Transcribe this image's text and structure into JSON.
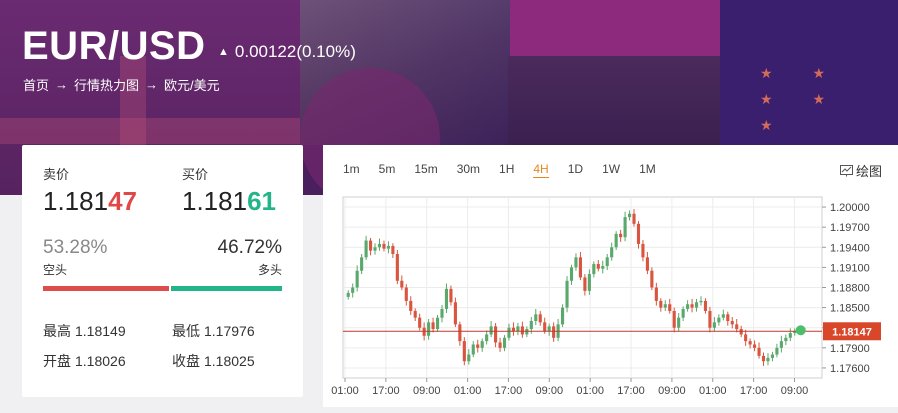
{
  "header": {
    "pair": "EUR/USD",
    "change_arrow": "▲",
    "change": "0.00122(0.10%)",
    "breadcrumb": [
      "首页",
      "行情热力图",
      "欧元/美元"
    ],
    "breadcrumb_sep": "→"
  },
  "quote": {
    "sell_label": "卖价",
    "buy_label": "买价",
    "sell_price_main": "1.181",
    "sell_price_hl": "47",
    "buy_price_main": "1.181",
    "buy_price_hl": "61",
    "short_pct": "53.28%",
    "long_pct": "46.72%",
    "short_label": "空头",
    "long_label": "多头",
    "short_fraction": 0.5328,
    "long_fraction": 0.4672,
    "high_label": "最高",
    "high": "1.18149",
    "low_label": "最低",
    "low": "1.17976",
    "open_label": "开盘",
    "open": "1.18026",
    "close_label": "收盘",
    "close": "1.18025"
  },
  "chart_toolbar": {
    "timeframes": [
      "1m",
      "5m",
      "15m",
      "30m",
      "1H",
      "4H",
      "1D",
      "1W",
      "1M"
    ],
    "active_timeframe": "4H",
    "draw_label": "绘图"
  },
  "colors": {
    "up": "#22b58a",
    "down": "#e04848",
    "up_candle": "#5aa86c",
    "down_candle": "#d9553f",
    "price_line": "#c0392b",
    "accent": "#e08a1e"
  },
  "chart_data": {
    "type": "candlestick",
    "x_tick_labels": [
      "01:00",
      "17:00",
      "09:00",
      "01:00",
      "17:00",
      "09:00",
      "01:00",
      "17:00",
      "09:00",
      "01:00",
      "17:00",
      "09:00"
    ],
    "y_tick_labels": [
      "1.20000",
      "1.19700",
      "1.19400",
      "1.19100",
      "1.18800",
      "1.18500",
      "1.18200",
      "1.17900",
      "1.17600"
    ],
    "ylim": [
      1.1745,
      1.2015
    ],
    "current_price": 1.18147,
    "current_price_label": "1.18147",
    "closes": [
      1.1872,
      1.188,
      1.1905,
      1.1925,
      1.195,
      1.1935,
      1.194,
      1.1945,
      1.1938,
      1.1942,
      1.193,
      1.189,
      1.188,
      1.186,
      1.1845,
      1.1835,
      1.182,
      1.1808,
      1.1828,
      1.1818,
      1.1835,
      1.1848,
      1.1878,
      1.1858,
      1.1825,
      1.18,
      1.177,
      1.178,
      1.1795,
      1.179,
      1.18,
      1.181,
      1.1822,
      1.1798,
      1.179,
      1.1805,
      1.182,
      1.1815,
      1.1822,
      1.181,
      1.1818,
      1.183,
      1.184,
      1.1828,
      1.1815,
      1.1822,
      1.1805,
      1.1825,
      1.185,
      1.189,
      1.191,
      1.1925,
      1.1895,
      1.1875,
      1.19,
      1.1915,
      1.1908,
      1.1912,
      1.1925,
      1.194,
      1.196,
      1.1955,
      1.1985,
      1.199,
      1.1975,
      1.1945,
      1.1925,
      1.1905,
      1.188,
      1.186,
      1.185,
      1.1855,
      1.1845,
      1.182,
      1.1835,
      1.1848,
      1.1855,
      1.185,
      1.1858,
      1.186,
      1.1845,
      1.182,
      1.1828,
      1.1835,
      1.184,
      1.183,
      1.1825,
      1.1818,
      1.181,
      1.18,
      1.1795,
      1.179,
      1.1778,
      1.177,
      1.1775,
      1.178,
      1.179,
      1.18,
      1.1805,
      1.1812,
      1.1815
    ]
  }
}
